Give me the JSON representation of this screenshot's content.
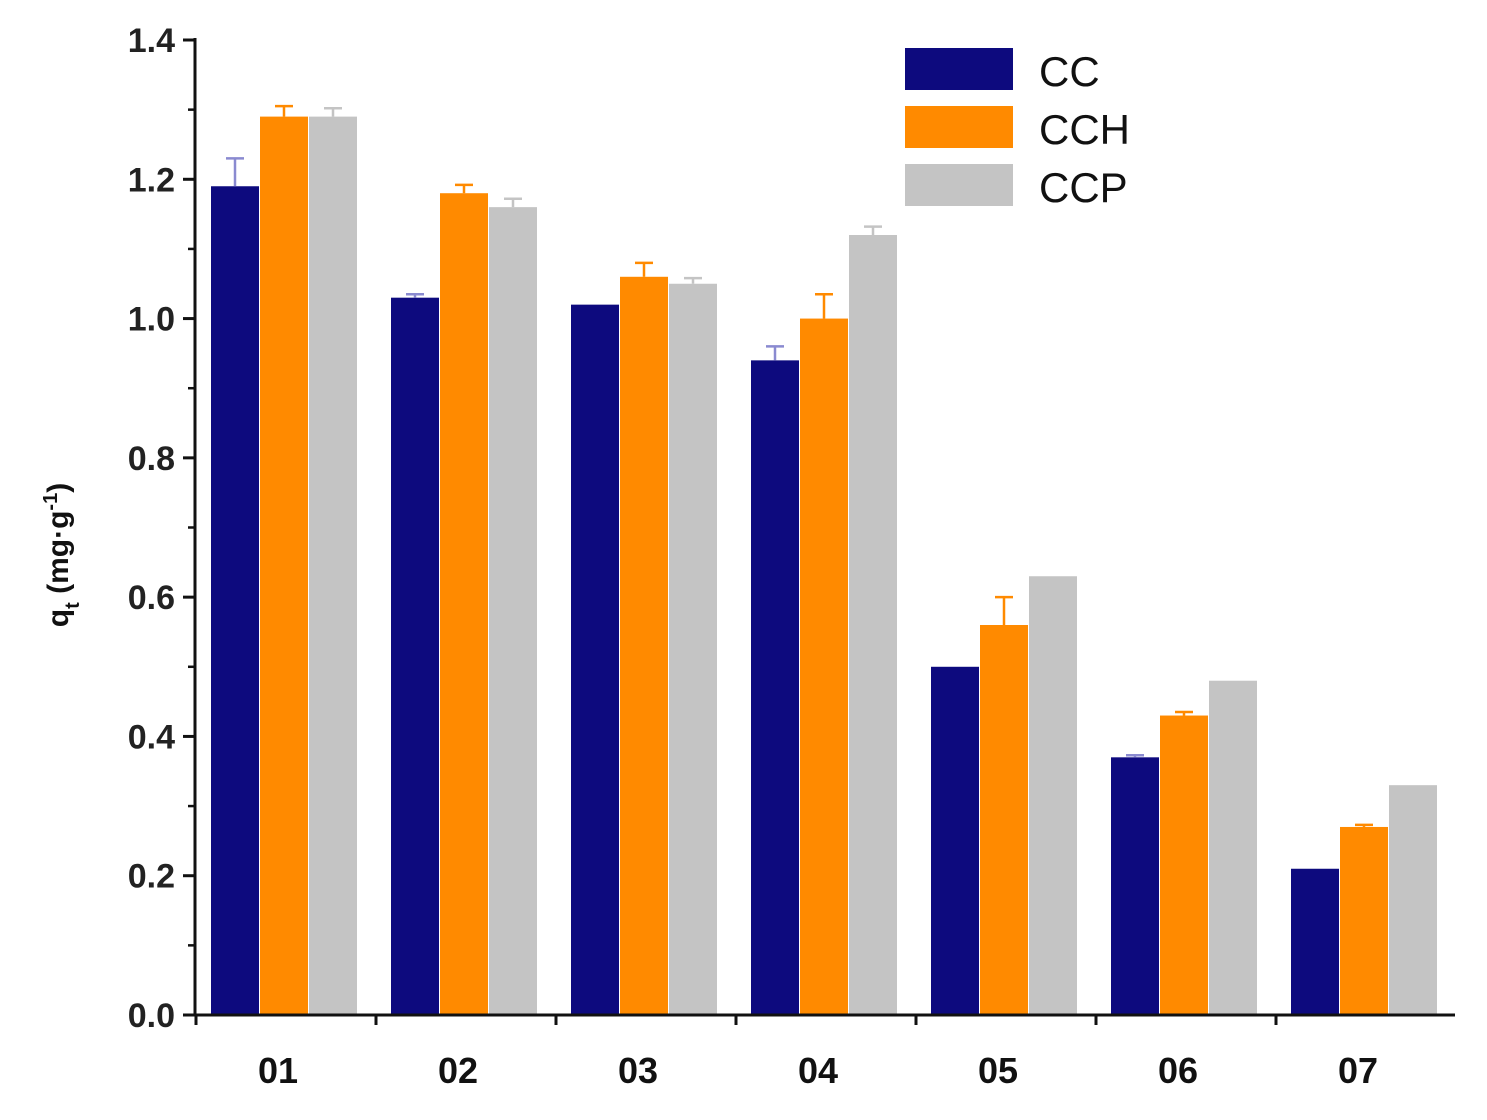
{
  "chart_data": {
    "type": "bar",
    "title": "",
    "xlabel": "",
    "ylabel": {
      "prefix": "q",
      "subscript": "t",
      "unit_open": " (mg·g",
      "superscript": "-1",
      "unit_close": ")"
    },
    "categories": [
      "01",
      "02",
      "03",
      "04",
      "05",
      "06",
      "07"
    ],
    "ylim": [
      0.0,
      1.4
    ],
    "yticks": [
      "0.0",
      "0.2",
      "0.4",
      "0.6",
      "0.8",
      "1.0",
      "1.2",
      "1.4"
    ],
    "legend_position": "top-right",
    "grid": false,
    "series": [
      {
        "name": "CC",
        "color": "#0d0a7e",
        "error_color": "#8a8ad0",
        "values": [
          1.19,
          1.03,
          1.02,
          0.94,
          0.5,
          0.37,
          0.21
        ],
        "errors": [
          0.04,
          0.005,
          0.0,
          0.02,
          0.0,
          0.003,
          0.0
        ]
      },
      {
        "name": "CCH",
        "color": "#ff8a00",
        "error_color": "#ff8a00",
        "values": [
          1.29,
          1.18,
          1.06,
          1.0,
          0.56,
          0.43,
          0.27
        ],
        "errors": [
          0.015,
          0.012,
          0.02,
          0.035,
          0.04,
          0.005,
          0.003
        ]
      },
      {
        "name": "CCP",
        "color": "#c4c4c4",
        "error_color": "#c4c4c4",
        "values": [
          1.29,
          1.16,
          1.05,
          1.12,
          0.63,
          0.48,
          0.33
        ],
        "errors": [
          0.012,
          0.012,
          0.008,
          0.012,
          0.0,
          0.0,
          0.0
        ]
      }
    ]
  }
}
